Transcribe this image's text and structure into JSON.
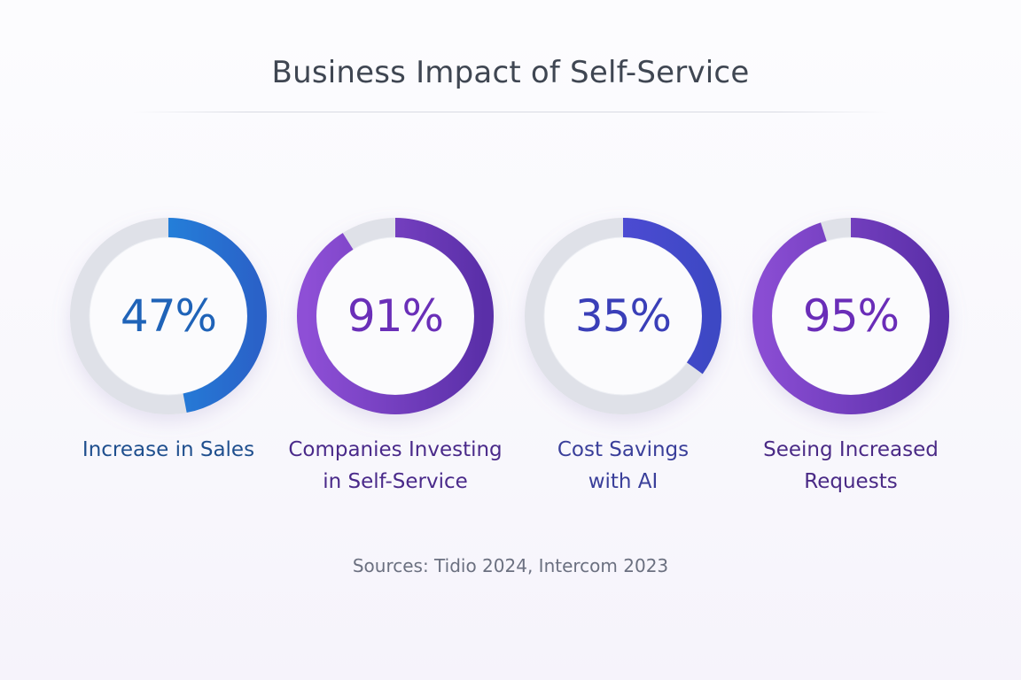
{
  "title": "Business Impact of Self-Service",
  "sources": "Sources: Tidio 2024, Intercom 2023",
  "chart_data": {
    "type": "donut",
    "max": 100,
    "items": [
      {
        "value": 47,
        "value_label": "47%",
        "label_lines": [
          "Increase in Sales"
        ],
        "color_start": "#1e9bea",
        "color_end": "#2a62c8",
        "text_color": "#1f63b8",
        "label_color": "#1f4f8e"
      },
      {
        "value": 91,
        "value_label": "91%",
        "label_lines": [
          "Companies Investing",
          "in Self-Service"
        ],
        "color_start": "#8e4fd6",
        "color_end": "#5a2fa8",
        "text_color": "#6a2fb8",
        "label_color": "#4a2a8a"
      },
      {
        "value": 35,
        "value_label": "35%",
        "label_lines": [
          "Cost Savings",
          "with AI"
        ],
        "color_start": "#5b4ee0",
        "color_end": "#3d48c4",
        "text_color": "#3a3fb8",
        "label_color": "#3a3f9a"
      },
      {
        "value": 95,
        "value_label": "95%",
        "label_lines": [
          "Seeing Increased",
          "Requests"
        ],
        "color_start": "#8a4dd3",
        "color_end": "#5a2fa8",
        "text_color": "#6a2db8",
        "label_color": "#4a2a86"
      }
    ],
    "track_color": "#dfe1e8"
  }
}
